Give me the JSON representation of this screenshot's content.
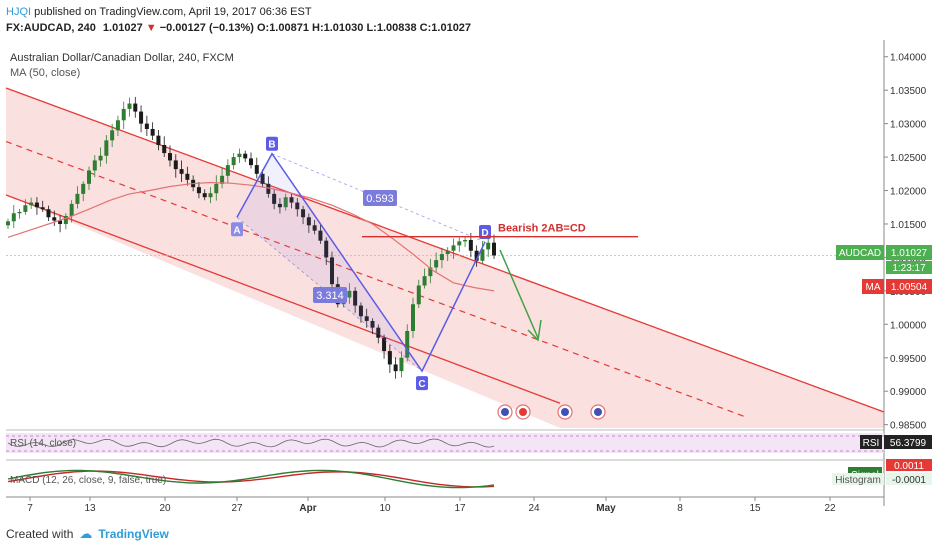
{
  "header": {
    "author": "HJQI",
    "published": "published on TradingView.com, April 19, 2017 06:36 EST",
    "symbol": "FX:AUDCAD, 240",
    "last": "1.01027",
    "change": "−0.00127 (−0.13%)",
    "open_label": "O:",
    "open": "1.00871",
    "high_label": "H:",
    "high": "1.01030",
    "low_label": "L:",
    "low": "1.00838",
    "close_label": "C:",
    "close": "1.01027"
  },
  "legend": {
    "title": "Australian Dollar/Canadian Dollar, 240, FXCM",
    "ma": "MA (50, close)"
  },
  "chart_data": {
    "type": "candlestick",
    "price_axis": {
      "ticks": [
        "1.04000",
        "1.03500",
        "1.03000",
        "1.02500",
        "1.02000",
        "1.01500",
        "1.01000",
        "1.00500",
        "1.00000",
        "0.99500",
        "0.99000",
        "0.98500"
      ],
      "ylim": [
        0.9845,
        1.0425
      ]
    },
    "time_axis": {
      "ticks": [
        "7",
        "13",
        "20",
        "27",
        "Apr",
        "10",
        "17",
        "24",
        "May",
        "8",
        "15",
        "22"
      ]
    },
    "series": [
      {
        "name": "AUDCAD",
        "close_path": [
          1.0154,
          1.0166,
          1.0168,
          1.0178,
          1.0182,
          1.0175,
          1.0172,
          1.016,
          1.0155,
          1.015,
          1.0162,
          1.018,
          1.0195,
          1.021,
          1.023,
          1.0245,
          1.0252,
          1.0275,
          1.029,
          1.0305,
          1.0322,
          1.033,
          1.0318,
          1.03,
          1.0292,
          1.0282,
          1.0268,
          1.0256,
          1.0245,
          1.0232,
          1.0225,
          1.0216,
          1.0205,
          1.0196,
          1.019,
          1.0196,
          1.021,
          1.0222,
          1.0238,
          1.025,
          1.0255,
          1.0248,
          1.0238,
          1.0225,
          1.021,
          1.0195,
          1.018,
          1.0175,
          1.019,
          1.0182,
          1.0172,
          1.016,
          1.0148,
          1.014,
          1.0125,
          1.01,
          1.006,
          1.003,
          1.004,
          1.005,
          1.0028,
          1.0012,
          1.0005,
          0.9995,
          0.998,
          0.996,
          0.994,
          0.993,
          0.995,
          0.999,
          1.003,
          1.0058,
          1.0072,
          1.0085,
          1.0096,
          1.0105,
          1.011,
          1.0118,
          1.0124,
          1.0126,
          1.011,
          1.0095,
          1.0112,
          1.0122,
          1.0103
        ]
      }
    ],
    "ma50_path": [
      1.013,
      1.014,
      1.015,
      1.016,
      1.0172,
      1.0185,
      1.0195,
      1.02,
      1.0206,
      1.021,
      1.0212,
      1.0211,
      1.0208,
      1.0203,
      1.0196,
      1.0188,
      1.0178,
      1.0165,
      1.015,
      1.0128,
      1.0105,
      1.008,
      1.0062,
      1.0055,
      1.005
    ],
    "pattern": {
      "name": "Bearish 2AB=CD",
      "points": [
        {
          "label": "A",
          "price": 1.016
        },
        {
          "label": "B",
          "price": 1.0255
        },
        {
          "label": "C",
          "price": 0.993
        },
        {
          "label": "D",
          "price": 1.0123
        }
      ],
      "ratios": [
        "0.593",
        "3.314"
      ]
    },
    "resistance_level": 1.0131,
    "badges": {
      "audcad_label": "AUDCAD",
      "audcad_value": "1.01027",
      "countdown": "1:23:17",
      "ma_label": "MA",
      "ma_value": "1.00504"
    },
    "rsi": {
      "label": "RSI (14, close)",
      "badge_label": "RSI",
      "value": "56.3799"
    },
    "macd": {
      "label": "MACD (12, 26, close, 9, false, true)",
      "signal_label": "Signal",
      "signal_value": "0.0011",
      "hist_label": "Histogram",
      "hist_value": "-0.0001"
    }
  },
  "footer": {
    "created_with": "Created with",
    "brand": "TradingView"
  },
  "colors": {
    "bull": "#2e7d32",
    "bear": "#1b1b1b",
    "channel": "#e53935",
    "fill": "#f8d5d3",
    "pattern": "#5c5ce6",
    "arrow": "#43a047",
    "ma": "#e57373"
  }
}
